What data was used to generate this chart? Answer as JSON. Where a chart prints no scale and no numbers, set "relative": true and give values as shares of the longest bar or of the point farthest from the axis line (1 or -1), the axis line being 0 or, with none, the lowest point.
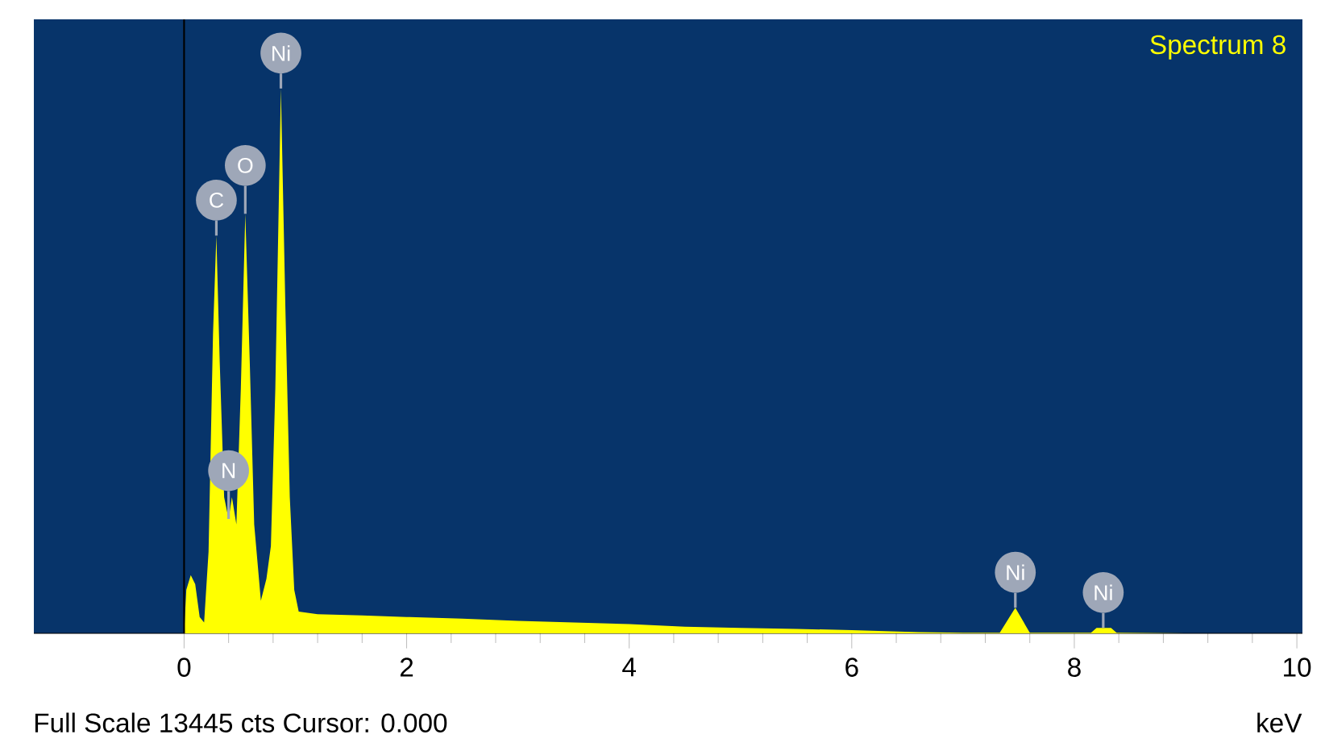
{
  "chart_data": {
    "type": "area",
    "title": "Spectrum 8",
    "xlabel": "keV",
    "relative": true,
    "color": "#ffff00",
    "x": [
      0.0,
      0.02,
      0.06,
      0.1,
      0.14,
      0.18,
      0.22,
      0.26,
      0.29,
      0.32,
      0.36,
      0.4,
      0.43,
      0.47,
      0.51,
      0.55,
      0.59,
      0.63,
      0.69,
      0.74,
      0.78,
      0.82,
      0.87,
      0.91,
      0.95,
      0.99,
      1.03,
      1.2,
      1.6,
      2.0,
      2.5,
      3.0,
      3.5,
      4.0,
      4.5,
      5.0,
      5.5,
      6.0,
      6.3,
      6.6,
      7.0,
      7.33,
      7.47,
      7.6,
      8.0,
      8.15,
      8.2,
      8.33,
      8.38,
      9.0,
      10.0
    ],
    "values": [
      0,
      0.08,
      0.107,
      0.09,
      0.03,
      0.02,
      0.15,
      0.55,
      0.73,
      0.5,
      0.25,
      0.21,
      0.25,
      0.2,
      0.45,
      0.77,
      0.5,
      0.2,
      0.06,
      0.1,
      0.16,
      0.45,
      1,
      0.6,
      0.25,
      0.08,
      0.04,
      0.035,
      0.033,
      0.03,
      0.027,
      0.023,
      0.02,
      0.017,
      0.012,
      0.01,
      0.008,
      0.006,
      0.004,
      0.002,
      0.001,
      0.001,
      0.047,
      0.001,
      0.001,
      0.001,
      0.01,
      0.01,
      0.001,
      0,
      0
    ],
    "xlim": [
      -1.35,
      10.05
    ],
    "xticks": [
      0,
      2,
      4,
      6,
      8,
      10
    ],
    "tick_labels": "x",
    "ref_lines": [
      {
        "axis": "x",
        "value": 0,
        "color": "#000000"
      }
    ],
    "annotations": [
      "Full Scale 13445 cts Cursor: 0.000",
      {
        "text": "C",
        "x": 0.29,
        "y": 0.73
      },
      {
        "text": "N",
        "x": 0.4,
        "y": 0.21
      },
      {
        "text": "O",
        "x": 0.55,
        "y": 0.77
      },
      {
        "text": "Ni",
        "x": 0.87,
        "y": 1
      },
      {
        "text": "Ni",
        "x": 7.47,
        "y": 0.047
      },
      {
        "text": "Ni",
        "x": 8.26,
        "y": 0.01
      }
    ]
  }
}
